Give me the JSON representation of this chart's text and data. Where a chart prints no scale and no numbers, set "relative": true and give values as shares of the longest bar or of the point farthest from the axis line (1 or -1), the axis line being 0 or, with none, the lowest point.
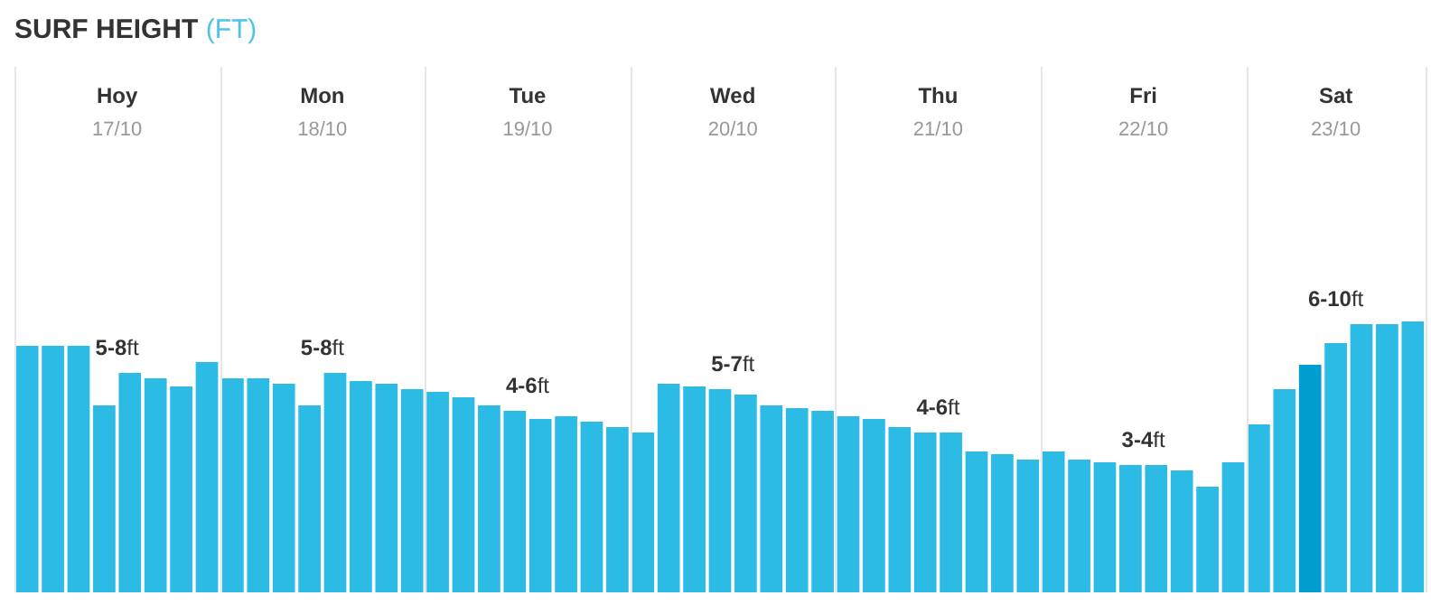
{
  "chart_data": {
    "type": "bar",
    "relative": true,
    "title": "SURF HEIGHT (FT)",
    "categories": [
      null,
      null,
      null,
      null,
      null,
      null,
      null,
      null,
      null,
      null,
      null,
      null,
      null,
      null,
      null,
      null,
      null,
      null,
      null,
      null,
      null,
      null,
      null,
      null,
      null,
      null,
      null,
      null,
      null,
      null,
      null,
      null,
      null,
      null,
      null,
      null,
      null,
      null,
      null,
      null,
      null,
      null,
      null,
      null,
      null,
      null,
      null,
      null,
      null,
      null,
      null,
      null,
      null,
      null,
      null
    ],
    "values": [
      0.91,
      0.91,
      0.91,
      0.69,
      0.81,
      0.79,
      0.76,
      0.85,
      0.79,
      0.79,
      0.77,
      0.69,
      0.81,
      0.78,
      0.77,
      0.75,
      0.74,
      0.72,
      0.69,
      0.67,
      0.64,
      0.65,
      0.63,
      0.61,
      0.59,
      0.77,
      0.76,
      0.75,
      0.73,
      0.69,
      0.68,
      0.67,
      0.65,
      0.64,
      0.61,
      0.59,
      0.59,
      0.52,
      0.51,
      0.49,
      0.52,
      0.49,
      0.48,
      0.47,
      0.47,
      0.45,
      0.39,
      0.48,
      0.62,
      0.75,
      0.84,
      0.92,
      0.99,
      0.99,
      1
    ],
    "colors": [
      "#2bbbe5",
      "#2bbbe5",
      "#2bbbe5",
      "#2bbbe5",
      "#2bbbe5",
      "#2bbbe5",
      "#2bbbe5",
      "#2bbbe5",
      "#2bbbe5",
      "#2bbbe5",
      "#2bbbe5",
      "#2bbbe5",
      "#2bbbe5",
      "#2bbbe5",
      "#2bbbe5",
      "#2bbbe5",
      "#2bbbe5",
      "#2bbbe5",
      "#2bbbe5",
      "#2bbbe5",
      "#2bbbe5",
      "#2bbbe5",
      "#2bbbe5",
      "#2bbbe5",
      "#2bbbe5",
      "#2bbbe5",
      "#2bbbe5",
      "#2bbbe5",
      "#2bbbe5",
      "#2bbbe5",
      "#2bbbe5",
      "#2bbbe5",
      "#2bbbe5",
      "#2bbbe5",
      "#2bbbe5",
      "#2bbbe5",
      "#2bbbe5",
      "#2bbbe5",
      "#2bbbe5",
      "#2bbbe5",
      "#2bbbe5",
      "#2bbbe5",
      "#2bbbe5",
      "#2bbbe5",
      "#2bbbe5",
      "#2bbbe5",
      "#2bbbe5",
      "#2bbbe5",
      "#2bbbe5",
      "#2bbbe5",
      "#009ecf",
      "#2bbbe5",
      "#2bbbe5",
      "#2bbbe5",
      "#2bbbe5"
    ],
    "annotations": [
      "Hoy",
      "17/10",
      "5-8ft",
      "Mon",
      "18/10",
      "5-8ft",
      "Tue",
      "19/10",
      "4-6ft",
      "Wed",
      "20/10",
      "5-7ft",
      "Thu",
      "21/10",
      "4-6ft",
      "Fri",
      "22/10",
      "3-4ft",
      "Sat",
      "23/10",
      "6-10ft"
    ]
  }
}
